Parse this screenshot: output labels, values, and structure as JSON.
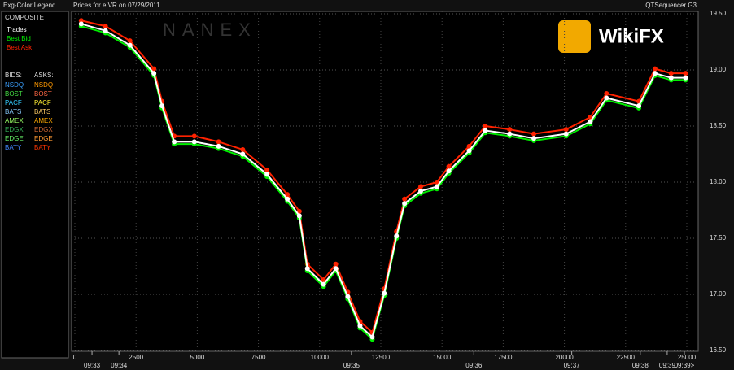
{
  "chart_data": {
    "type": "line",
    "legend_title": "Exg-Color Legend",
    "title": "Prices for  eIVR  on  07/29/2011",
    "source": "QTSequencer G3",
    "watermark": "WikiFX",
    "background_mark": "NANEX",
    "composite_heading": "COMPOSITE",
    "bids_heading": "BIDS:",
    "asks_heading": "ASKS:",
    "exchanges": {
      "bids": [
        {
          "name": "NSDQ",
          "color": "#3aa0ff"
        },
        {
          "name": "BOST",
          "color": "#44dd44"
        },
        {
          "name": "PACF",
          "color": "#33ccff"
        },
        {
          "name": "BATS",
          "color": "#88ccff"
        },
        {
          "name": "AMEX",
          "color": "#99ff66"
        },
        {
          "name": "EDGX",
          "color": "#33aa55"
        },
        {
          "name": "EDGE",
          "color": "#66ee66"
        },
        {
          "name": "BATY",
          "color": "#4488ff"
        }
      ],
      "asks": [
        {
          "name": "NSDQ",
          "color": "#ff9900"
        },
        {
          "name": "BOST",
          "color": "#ff6644"
        },
        {
          "name": "PACF",
          "color": "#ffee33"
        },
        {
          "name": "BATS",
          "color": "#ffcc66"
        },
        {
          "name": "AMEX",
          "color": "#ffaa00"
        },
        {
          "name": "EDGX",
          "color": "#cc6633"
        },
        {
          "name": "EDGE",
          "color": "#ff9933"
        },
        {
          "name": "BATY",
          "color": "#ff3300"
        }
      ]
    },
    "x": [
      260,
      1250,
      2250,
      3230,
      3560,
      4060,
      4880,
      5870,
      6860,
      7850,
      8680,
      9170,
      9500,
      10160,
      10660,
      11150,
      11650,
      12150,
      12640,
      13140,
      13470,
      14130,
      14790,
      15280,
      16110,
      16770,
      17760,
      18750,
      20070,
      21060,
      21720,
      23040,
      23700,
      24360,
      24950
    ],
    "series": [
      {
        "name": "Best Ask",
        "color": "#ff2200",
        "values": [
          19.44,
          19.39,
          19.26,
          19.01,
          18.72,
          18.41,
          18.41,
          18.36,
          18.29,
          18.11,
          17.89,
          17.74,
          17.27,
          17.13,
          17.27,
          17.02,
          16.76,
          16.66,
          17.05,
          17.56,
          17.85,
          17.96,
          18.0,
          18.14,
          18.32,
          18.5,
          18.47,
          18.43,
          18.47,
          18.58,
          18.79,
          18.72,
          19.01,
          18.97,
          18.97
        ]
      },
      {
        "name": "Best Bid",
        "color": "#00ee00",
        "values": [
          19.39,
          19.33,
          19.2,
          18.95,
          18.66,
          18.34,
          18.34,
          18.3,
          18.23,
          18.05,
          17.83,
          17.68,
          17.21,
          17.07,
          17.21,
          16.96,
          16.7,
          16.6,
          16.99,
          17.5,
          17.79,
          17.9,
          17.94,
          18.08,
          18.26,
          18.44,
          18.41,
          18.37,
          18.41,
          18.52,
          18.73,
          18.66,
          18.95,
          18.91,
          18.91
        ]
      },
      {
        "name": "Trades",
        "color": "#ffffff",
        "values": [
          19.41,
          19.35,
          19.22,
          18.97,
          18.68,
          18.36,
          18.36,
          18.32,
          18.25,
          18.07,
          17.85,
          17.7,
          17.23,
          17.09,
          17.23,
          16.98,
          16.72,
          16.62,
          17.01,
          17.52,
          17.81,
          17.92,
          17.96,
          18.1,
          18.28,
          18.46,
          18.43,
          18.39,
          18.43,
          18.54,
          18.75,
          18.68,
          18.97,
          18.93,
          18.93
        ]
      }
    ],
    "xlim": [
      0,
      25200
    ],
    "xticks": [
      0,
      2500,
      5000,
      7500,
      10000,
      12500,
      15000,
      17500,
      20000,
      22500,
      25000
    ],
    "time_marks": [
      {
        "value": 700,
        "label": "09:33"
      },
      {
        "value": 1800,
        "label": "09:34"
      },
      {
        "value": 11300,
        "label": "09:35"
      },
      {
        "value": 16300,
        "label": "09:36"
      },
      {
        "value": 20300,
        "label": "09:37"
      },
      {
        "value": 23100,
        "label": "09:38"
      },
      {
        "value": 24200,
        "label": "09:39"
      },
      {
        "value": 24900,
        "label": "09:39>"
      }
    ],
    "ylim": [
      16.5,
      19.5
    ],
    "yticks": [
      {
        "value": 16.5,
        "label": "16.50"
      },
      {
        "value": 17,
        "label": "17.00"
      },
      {
        "value": 17.5,
        "label": "17.50"
      },
      {
        "value": 18,
        "label": "18.00"
      },
      {
        "value": 18.5,
        "label": "18.50"
      },
      {
        "value": 19,
        "label": "19.00"
      },
      {
        "value": 19.5,
        "label": "19.50"
      }
    ],
    "grid": true
  }
}
